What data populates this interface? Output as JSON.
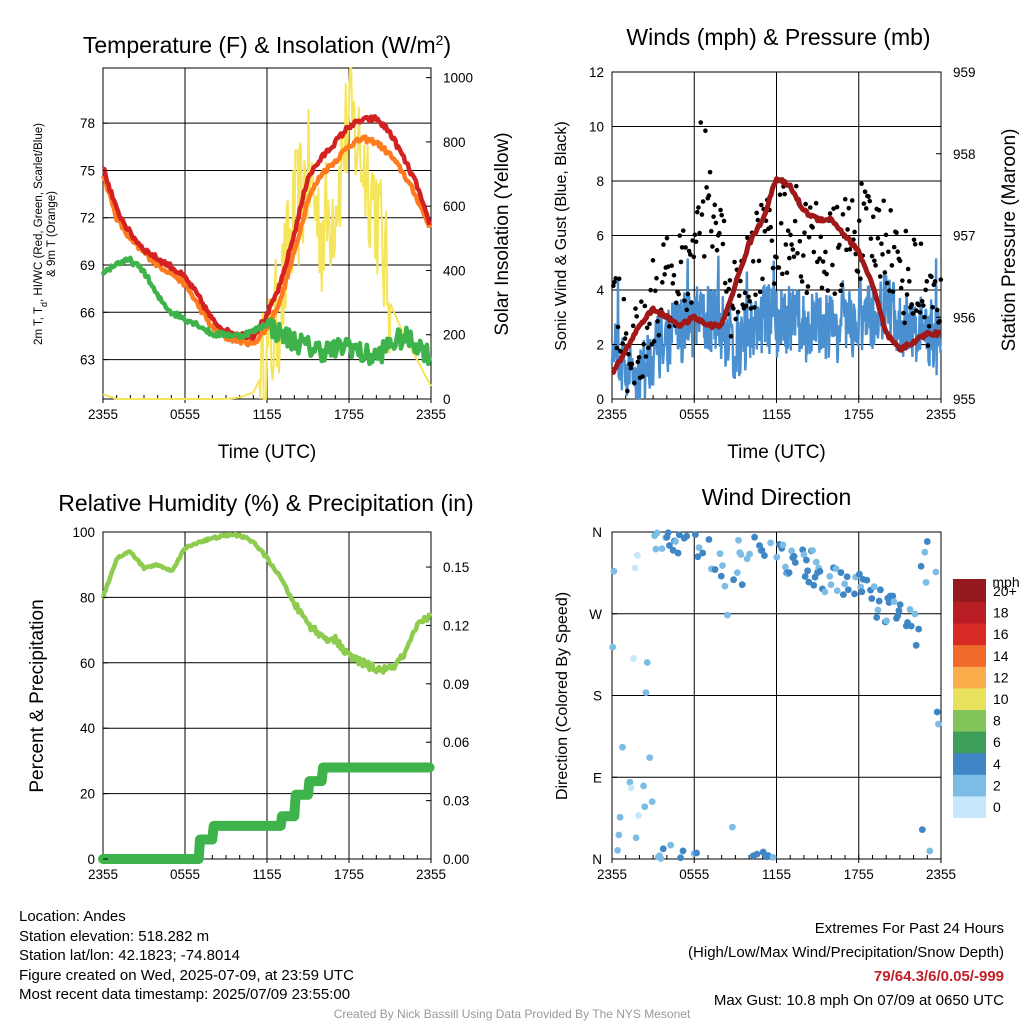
{
  "colors": {
    "temp": "#d42222",
    "heat_index": "#ff7b20",
    "dewpoint": "#3fb34b",
    "nine_m": "#ff7b20",
    "solar": "#f5e55a",
    "wind": "#4a90d0",
    "gust": "#000000",
    "pressure": "#a01818",
    "rh": "#8dcc4e",
    "precip": "#3fb34b"
  },
  "chart_data": [
    {
      "id": "temperature",
      "type": "line",
      "title": "Temperature (F) & Insolation (W/m²)",
      "title_main": "Temperature (F) & Insolation (W/m",
      "title_sup": "2",
      "title_close": ")",
      "xlabel": "Time (UTC)",
      "ylabel_lines": [
        "2m T, T",
        "d",
        ", HI/WC (Red, Green, Scarlet/Blue)",
        "& 9m T (Orange)"
      ],
      "ylabel_right": "Solar Insolation (Yellow)",
      "x_ticks": [
        "2355",
        "0555",
        "1155",
        "1755",
        "2355"
      ],
      "ylim": [
        60.5,
        81.5
      ],
      "ylim_right": [
        0,
        1030
      ],
      "y_ticks": [
        "63",
        "66",
        "69",
        "72",
        "75",
        "78"
      ],
      "y_ticks_right": [
        "0",
        "200",
        "400",
        "600",
        "800",
        "1000"
      ],
      "x_hours": [
        0,
        1,
        2,
        3,
        4,
        5,
        6,
        7,
        8,
        9,
        10,
        11,
        12,
        13,
        14,
        15,
        16,
        17,
        18,
        19,
        20,
        21,
        22,
        23,
        24
      ],
      "series": [
        {
          "key": "temp",
          "values": [
            75.2,
            72.5,
            71.0,
            70.0,
            69.4,
            68.9,
            68.2,
            67.0,
            65.5,
            64.8,
            64.6,
            64.5,
            65.8,
            67.8,
            71.0,
            74.6,
            75.8,
            76.8,
            77.8,
            78.2,
            78.3,
            77.4,
            75.8,
            74.0,
            71.2
          ]
        },
        {
          "key": "heat_index",
          "values": [
            74.8,
            72.0,
            70.6,
            69.8,
            69.0,
            68.5,
            67.8,
            66.4,
            65.0,
            64.4,
            64.2,
            64.0,
            65.0,
            66.8,
            69.8,
            73.2,
            74.8,
            75.6,
            76.6,
            77.0,
            76.8,
            76.0,
            74.8,
            73.2,
            71.2
          ]
        },
        {
          "key": "dewpoint",
          "values": [
            68.5,
            69.1,
            69.3,
            68.6,
            67.0,
            66.0,
            65.6,
            65.2,
            64.6,
            64.6,
            64.5,
            64.8,
            65.3,
            64.6,
            64.2,
            63.8,
            63.6,
            63.6,
            64.0,
            63.3,
            63.2,
            64.0,
            64.4,
            64.0,
            63.2
          ]
        }
      ],
      "solar": [
        15,
        0,
        0,
        0,
        0,
        0,
        0,
        0,
        0,
        0,
        5,
        20,
        110,
        300,
        560,
        700,
        520,
        620,
        880,
        750,
        600,
        300,
        200,
        120,
        40
      ]
    },
    {
      "id": "winds",
      "type": "line",
      "title": "Winds (mph) & Pressure (mb)",
      "xlabel": "Time (UTC)",
      "ylabel": "Sonic Wind & Gust (Blue, Black)",
      "ylabel_right": "Station Pressure (Maroon)",
      "x_ticks": [
        "2355",
        "0555",
        "1155",
        "1755",
        "2355"
      ],
      "ylim": [
        0,
        12
      ],
      "ylim_right": [
        955,
        959
      ],
      "y_ticks": [
        "0",
        "2",
        "4",
        "6",
        "8",
        "10",
        "12"
      ],
      "y_ticks_right": [
        "955",
        "956",
        "957",
        "958",
        "959"
      ],
      "x_hours": [
        0,
        1,
        2,
        3,
        4,
        5,
        6,
        7,
        8,
        9,
        10,
        11,
        12,
        13,
        14,
        15,
        16,
        17,
        18,
        19,
        20,
        21,
        22,
        23,
        24
      ],
      "wind_avg": [
        2.2,
        1.0,
        0.8,
        1.8,
        2.2,
        2.6,
        2.8,
        3.0,
        2.6,
        1.8,
        2.4,
        3.0,
        2.8,
        3.0,
        2.6,
        2.8,
        2.6,
        2.6,
        2.8,
        3.0,
        3.4,
        2.6,
        2.6,
        2.4,
        2.0
      ],
      "gust_avg": [
        4.0,
        2.0,
        2.0,
        3.6,
        4.2,
        4.4,
        5.2,
        7.0,
        5.6,
        3.2,
        4.5,
        5.8,
        6.0,
        6.4,
        5.6,
        5.8,
        5.2,
        5.8,
        6.2,
        5.8,
        6.0,
        4.6,
        4.4,
        3.8,
        2.8
      ],
      "pressure": [
        955.3,
        955.6,
        955.9,
        956.1,
        956.0,
        955.9,
        956.0,
        955.9,
        955.9,
        956.4,
        956.9,
        957.2,
        957.7,
        957.6,
        957.3,
        957.2,
        957.2,
        957.0,
        956.8,
        956.4,
        955.8,
        955.6,
        955.7,
        955.8,
        955.8
      ]
    },
    {
      "id": "humidity",
      "type": "line",
      "title": "Relative Humidity (%) & Precipitation (in)",
      "xlabel": "",
      "ylabel": "Percent & Precipitation",
      "x_ticks": [
        "2355",
        "0555",
        "1155",
        "1755",
        "2355"
      ],
      "ylim": [
        0,
        100
      ],
      "ylim_right": [
        0,
        0.168
      ],
      "y_ticks": [
        "0",
        "20",
        "40",
        "60",
        "80",
        "100"
      ],
      "y_ticks_right": [
        "0.00",
        "0.03",
        "0.06",
        "0.09",
        "0.12",
        "0.15"
      ],
      "x_hours": [
        0,
        1,
        2,
        3,
        4,
        5,
        6,
        7,
        8,
        9,
        10,
        11,
        12,
        13,
        14,
        15,
        16,
        17,
        18,
        19,
        20,
        21,
        22,
        23,
        24
      ],
      "series": [
        {
          "key": "rh",
          "values": [
            80,
            92,
            94,
            89,
            90,
            88,
            95,
            97,
            98,
            99,
            99,
            97,
            92,
            86,
            78,
            72,
            68,
            67,
            62,
            60,
            58,
            58,
            62,
            71,
            75
          ]
        }
      ],
      "precip": [
        0,
        0,
        0,
        0,
        0,
        0,
        0,
        0.01,
        0.017,
        0.017,
        0.017,
        0.017,
        0.017,
        0.022,
        0.033,
        0.04,
        0.047,
        0.047,
        0.047,
        0.047,
        0.047,
        0.047,
        0.047,
        0.047,
        0.047
      ]
    },
    {
      "id": "direction",
      "type": "scatter",
      "title": "Wind Direction",
      "xlabel": "",
      "ylabel": "Direction (Colored By Speed)",
      "x_ticks": [
        "2355",
        "0555",
        "1155",
        "1755",
        "2355"
      ],
      "y_ticks": [
        "N",
        "E",
        "S",
        "W",
        "N"
      ],
      "legend_title": "mph",
      "legend_labels": [
        "0",
        "2",
        "4",
        "6",
        "8",
        "10",
        "12",
        "14",
        "16",
        "18",
        "20+"
      ],
      "legend_colors": [
        "#c6e8fa",
        "#7cbde6",
        "#3f86c6",
        "#3d9e5a",
        "#82c45a",
        "#e8e15c",
        "#fbac4b",
        "#f06a2c",
        "#d82b25",
        "#b81d23",
        "#931b1d"
      ],
      "direction_avg": [
        20,
        30,
        350,
        355,
        358,
        356,
        350,
        340,
        320,
        200,
        345,
        352,
        340,
        330,
        325,
        320,
        305,
        300,
        295,
        285,
        280,
        270,
        255,
        240,
        230
      ]
    }
  ],
  "info_left": [
    "Location: Andes",
    "Station elevation: 518.282 m",
    "Station lat/lon: 42.1823; -74.8014",
    "Figure created on Wed, 2025-07-09, at 23:59 UTC",
    "Most recent data timestamp: 2025/07/09 23:55:00"
  ],
  "extremes": {
    "title": "Extremes For Past 24 Hours",
    "subtitle": "(High/Low/Max Wind/Precipitation/Snow Depth)",
    "values": "79/64.3/6/0.05/-999",
    "max_gust": "Max Gust: 10.8 mph On 07/09 at 0650 UTC"
  },
  "credit": "Created By Nick Bassill Using Data Provided By The NYS Mesonet"
}
